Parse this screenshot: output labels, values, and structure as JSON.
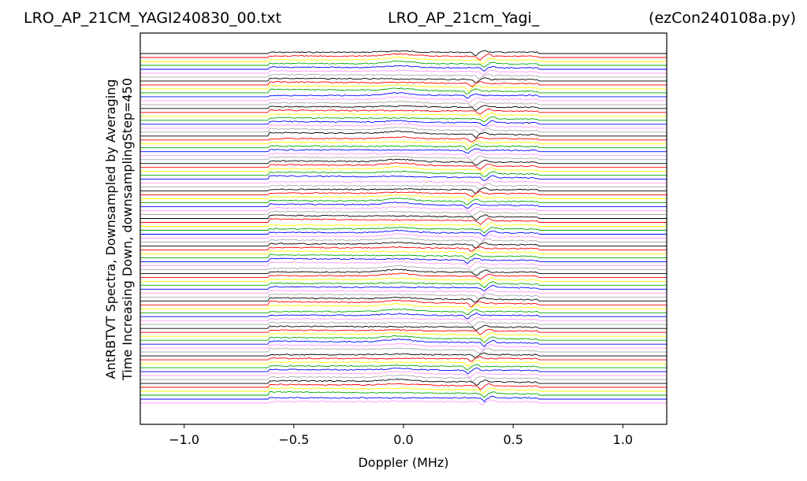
{
  "titles": {
    "left": "LRO_AP_21CM_YAGI240830_00.txt",
    "center": "LRO_AP_21cm_Yagi_",
    "right": "(ezCon240108a.py)"
  },
  "chart_data": {
    "type": "line",
    "xlabel": "Doppler (MHz)",
    "ylabel_lines": [
      "AntRBTVT Spectra, Downsampled by Averaging",
      "Time Increasing Down, downsamplingStep=450"
    ],
    "xlim": [
      -1.2,
      1.2
    ],
    "x_ticks": [
      -1.0,
      -0.5,
      0.0,
      0.5,
      1.0
    ],
    "x_tick_labels": [
      "−1.0",
      "−0.5",
      "0.0",
      "0.5",
      "1.0"
    ],
    "y_ticks": [],
    "grid": false,
    "legend": "none",
    "band": [
      -0.615,
      0.61
    ],
    "series_count": 90,
    "series_colors": [
      "#000000",
      "#ff0000",
      "#ffff00",
      "#00aa00",
      "#0000ff",
      "#ff99ff",
      "#aaaaaa"
    ]
  }
}
